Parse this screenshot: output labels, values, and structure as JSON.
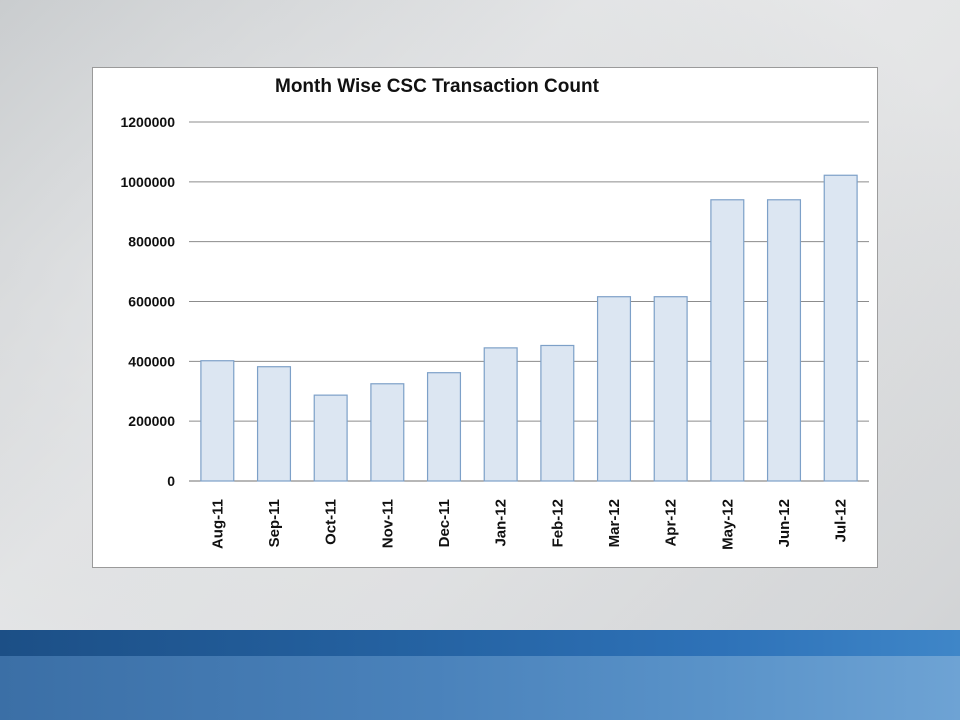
{
  "slide": {
    "colors": {
      "footer_dark": "#1c4f86",
      "footer_light": "#5a93c9"
    }
  },
  "chart_data": {
    "type": "bar",
    "title": "Month Wise CSC Transaction Count",
    "xlabel": "",
    "ylabel": "",
    "categories": [
      "Aug-11",
      "Sep-11",
      "Oct-11",
      "Nov-11",
      "Dec-11",
      "Jan-12",
      "Feb-12",
      "Mar-12",
      "Apr-12",
      "May-12",
      "Jun-12",
      "Jul-12"
    ],
    "series": [
      {
        "values": [
          402000,
          382000,
          287000,
          325000,
          362000,
          445000,
          453000,
          616000,
          616000,
          940000,
          940000,
          1022000
        ]
      }
    ],
    "ylim": [
      0,
      1200000
    ],
    "yticks": [
      0,
      200000,
      400000,
      600000,
      800000,
      1000000,
      1200000
    ],
    "ytick_labels": [
      "0",
      "200000",
      "400000",
      "600000",
      "800000",
      "1000000",
      "1200000"
    ],
    "grid": true,
    "legend": "none",
    "bar_fill": "#dce6f2",
    "bar_stroke": "#7da0c8",
    "grid_color": "#8c8c8c"
  }
}
